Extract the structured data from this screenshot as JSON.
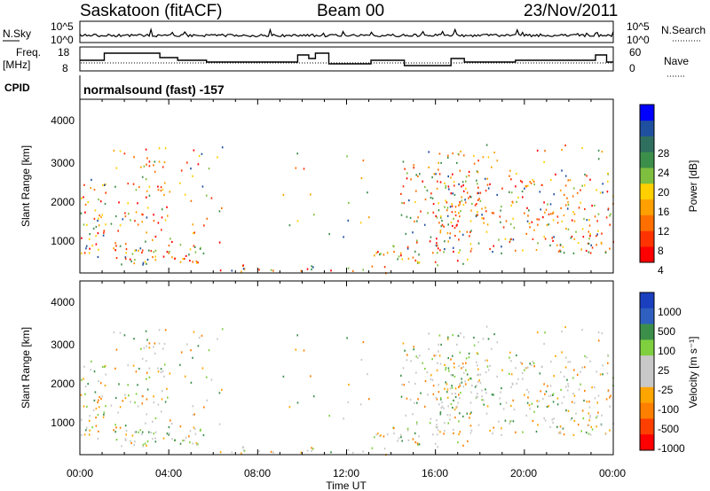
{
  "header": {
    "station": "Saskatoon (fitACF)",
    "beam": "Beam 00",
    "date": "23/Nov/2011"
  },
  "top_panels": {
    "nsky_label": "N.Sky",
    "nsky_ticks": [
      "10^5",
      "10^0"
    ],
    "nsearch_label": "N.Search",
    "nsearch_ticks": [
      "10^5",
      "10^0"
    ],
    "freq_label_1": "Freq.",
    "freq_label_2": "[MHz]",
    "freq_ticks": [
      "18",
      "8"
    ],
    "nave_label": "Nave",
    "nave_ticks": [
      "60",
      "0"
    ],
    "cpid_label": "CPID",
    "cpid_text": "normalsound (fast) -157"
  },
  "colors": {
    "power_scale": [
      "#0000ff",
      "#1f4f9f",
      "#2f6f5f",
      "#3c8f4a",
      "#7fbf3f",
      "#ffcf00",
      "#ff9f00",
      "#ff6f00",
      "#ff3300",
      "#ff0000"
    ],
    "velocity_scale": [
      "#1a3fbf",
      "#2f5fbf",
      "#3c8f4a",
      "#7fcf3f",
      "#c8c8c8",
      "#c8c8c8",
      "#ffa500",
      "#ff7f00",
      "#ff3f00",
      "#ff0000"
    ]
  },
  "chart_data": [
    {
      "type": "heatmap",
      "parameter": "power",
      "ylabel": "Slant Range [km]",
      "yticks": [
        "4000",
        "3000",
        "2000",
        "1000"
      ],
      "ylim": [
        180,
        4600
      ],
      "xlim": [
        0,
        24
      ],
      "colorbar_label": "Power [dB]",
      "colorbar_ticks": [
        "28",
        "24",
        "20",
        "16",
        "12",
        "8",
        "4"
      ],
      "colorbar_range": [
        0,
        32
      ]
    },
    {
      "type": "heatmap",
      "parameter": "velocity",
      "ylabel": "Slant Range [km]",
      "yticks": [
        "4000",
        "3000",
        "2000",
        "1000"
      ],
      "ylim": [
        180,
        4600
      ],
      "xlim": [
        0,
        24
      ],
      "colorbar_label": "Velocity [m s⁻¹]",
      "colorbar_ticks": [
        "1000",
        "500",
        "100",
        "25",
        "-25",
        "-100",
        "-500",
        "-1000"
      ],
      "xticks": [
        "00:00",
        "04:00",
        "08:00",
        "12:00",
        "16:00",
        "20:00",
        "00:00"
      ],
      "xlabel": "Time UT"
    }
  ],
  "series": {
    "freq_steps": [
      [
        0,
        12
      ],
      [
        1.1,
        12
      ],
      [
        1.1,
        16
      ],
      [
        3.6,
        16
      ],
      [
        3.6,
        13.5
      ],
      [
        4.4,
        13.5
      ],
      [
        4.4,
        12
      ],
      [
        5.7,
        12
      ],
      [
        5.7,
        11
      ],
      [
        9.8,
        11
      ],
      [
        9.8,
        15
      ],
      [
        10.3,
        15
      ],
      [
        10.3,
        13
      ],
      [
        10.6,
        13
      ],
      [
        10.6,
        16
      ],
      [
        11.2,
        16
      ],
      [
        11.2,
        10
      ],
      [
        13.1,
        10
      ],
      [
        13.1,
        12
      ],
      [
        14.6,
        12
      ],
      [
        14.6,
        9
      ],
      [
        16.7,
        9
      ],
      [
        16.7,
        13
      ],
      [
        17.3,
        13
      ],
      [
        17.3,
        11
      ],
      [
        19.6,
        11
      ],
      [
        19.6,
        12
      ],
      [
        23.2,
        12
      ],
      [
        23.2,
        15
      ],
      [
        23.7,
        15
      ],
      [
        23.7,
        11
      ],
      [
        24,
        11
      ]
    ]
  }
}
